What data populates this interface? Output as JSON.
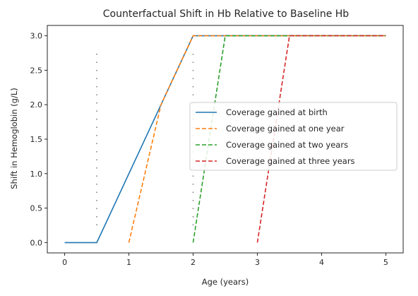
{
  "chart_data": {
    "type": "line",
    "title": "Counterfactual Shift in Hb Relative to Baseline Hb",
    "xlabel": "Age (years)",
    "ylabel": "Shift in Hemoglobin (g/L)",
    "xlim": [
      -0.27,
      5.27
    ],
    "ylim": [
      -0.15,
      3.15
    ],
    "xticks": [
      0,
      1,
      2,
      3,
      4,
      5
    ],
    "yticks": [
      0.0,
      0.5,
      1.0,
      1.5,
      2.0,
      2.5,
      3.0
    ],
    "xtick_labels": [
      "0",
      "1",
      "2",
      "3",
      "4",
      "5"
    ],
    "ytick_labels": [
      "0.0",
      "0.5",
      "1.0",
      "1.5",
      "2.0",
      "2.5",
      "3.0"
    ],
    "grid": false,
    "legend_position": "center-right",
    "series": [
      {
        "name": "Coverage gained at birth",
        "style": "solid",
        "color": "#1f77b4",
        "x": [
          0,
          0.5,
          2,
          5
        ],
        "y": [
          0,
          0,
          3,
          3
        ]
      },
      {
        "name": "Coverage gained at one year",
        "style": "dashed",
        "color": "#ff7f0e",
        "x": [
          1,
          1.5,
          2,
          5
        ],
        "y": [
          0,
          2,
          3,
          3
        ]
      },
      {
        "name": "Coverage gained at two years",
        "style": "dashed",
        "color": "#2ca02c",
        "x": [
          2,
          2.5,
          5
        ],
        "y": [
          0,
          3,
          3
        ]
      },
      {
        "name": "Coverage gained at three years",
        "style": "dashed",
        "color": "#d62728",
        "x": [
          3,
          3.5,
          5
        ],
        "y": [
          0,
          3,
          3
        ]
      }
    ],
    "reference_lines": [
      {
        "x": 0.5,
        "y_range": [
          0.25,
          2.8
        ],
        "style": "dotted",
        "color": "#999999"
      },
      {
        "x": 2,
        "y_range": [
          0.25,
          2.8
        ],
        "style": "dotted",
        "color": "#999999"
      }
    ]
  }
}
